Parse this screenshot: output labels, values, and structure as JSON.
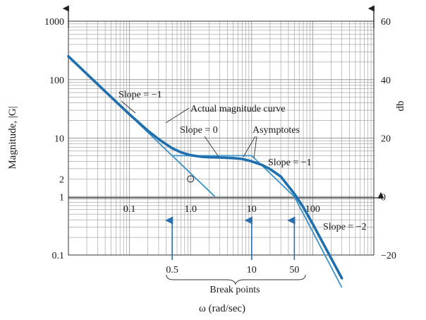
{
  "chart_data": {
    "type": "line",
    "xscale": "log",
    "yscale": "log",
    "xlim": [
      0.01,
      1000
    ],
    "ylim": [
      0.1,
      1000
    ],
    "y2lim": [
      -20,
      60
    ],
    "grid": true,
    "xlabel": "ω (rad/sec)",
    "ylabel": "Magnitude, |G|",
    "y2label": "db",
    "x_ticks": [
      0.1,
      1.0,
      10,
      100
    ],
    "x_tick_labels": [
      "0.1",
      "1.0",
      "10",
      "100"
    ],
    "y_ticks": [
      0.1,
      1,
      2,
      10,
      100,
      1000
    ],
    "y_tick_labels": [
      "0.1",
      "1",
      "2",
      "10",
      "100",
      "1000"
    ],
    "y2_ticks": [
      -20,
      0,
      20,
      40,
      60
    ],
    "y2_tick_labels": [
      "−20",
      "0",
      "20",
      "40",
      "60"
    ],
    "series": [
      {
        "x": [
          0.01,
          0.02,
          0.05,
          0.1,
          0.2,
          0.3,
          0.5,
          0.7,
          1,
          1.5,
          2,
          3,
          5,
          7,
          10,
          15,
          20,
          30,
          50,
          70,
          100,
          150,
          200,
          300
        ],
        "y": [
          250,
          125,
          50.5,
          25.5,
          13.4,
          9.6,
          6.7,
          5.7,
          5.1,
          4.8,
          4.7,
          4.65,
          4.55,
          4.4,
          4.0,
          3.45,
          2.95,
          2.2,
          1.12,
          0.66,
          0.34,
          0.155,
          0.088,
          0.04
        ]
      },
      {
        "x": [
          0.01,
          0.5,
          10,
          50,
          300
        ],
        "y": [
          250,
          5,
          5,
          1,
          0.0278
        ]
      },
      {
        "x": [
          0.5,
          2.5
        ],
        "y": [
          5,
          1
        ]
      }
    ],
    "marker": {
      "x": 1,
      "y": 2
    },
    "break_points": [
      0.5,
      10,
      50
    ],
    "break_point_labels": [
      "0.5",
      "10",
      "50"
    ],
    "annotations": {
      "slope_m1_top": "Slope = −1",
      "actual_curve": "Actual magnitude curve",
      "slope_0": "Slope = 0",
      "asymptotes": "Asymptotes",
      "slope_m1_mid": "Slope = −1",
      "slope_m2": "Slope = −2",
      "break_points": "Break points"
    }
  },
  "colors": {
    "curve": "#1f6fae",
    "asymptote": "#3a92c8",
    "grid": "#9a9a9a",
    "frame": "#333333",
    "axis": "#222222"
  }
}
